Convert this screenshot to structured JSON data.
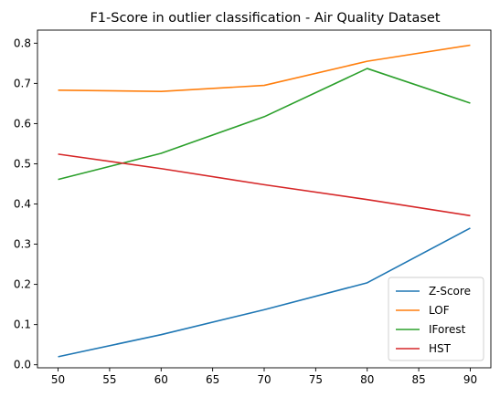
{
  "chart_data": {
    "type": "line",
    "title": "F1-Score in outlier classification - Air Quality Dataset",
    "xlabel": "",
    "ylabel": "",
    "x": [
      50,
      60,
      70,
      80,
      90
    ],
    "xlim": [
      48,
      92
    ],
    "ylim": [
      -0.0075,
      0.8325
    ],
    "x_ticks": [
      50,
      55,
      60,
      65,
      70,
      75,
      80,
      85,
      90
    ],
    "y_ticks": [
      0.0,
      0.1,
      0.2,
      0.3,
      0.4,
      0.5,
      0.6,
      0.7,
      0.8
    ],
    "grid": false,
    "legend_position": "lower-right",
    "series": [
      {
        "name": "Z-Score",
        "color": "#1f77b4",
        "values": [
          0.02,
          0.075,
          0.137,
          0.204,
          0.34
        ]
      },
      {
        "name": "LOF",
        "color": "#ff7f0e",
        "values": [
          0.683,
          0.68,
          0.695,
          0.755,
          0.795
        ]
      },
      {
        "name": "IForest",
        "color": "#2ca02c",
        "values": [
          0.461,
          0.526,
          0.617,
          0.737,
          0.651
        ]
      },
      {
        "name": "HST",
        "color": "#d62728",
        "values": [
          0.524,
          0.488,
          0.448,
          0.411,
          0.371
        ]
      }
    ]
  }
}
